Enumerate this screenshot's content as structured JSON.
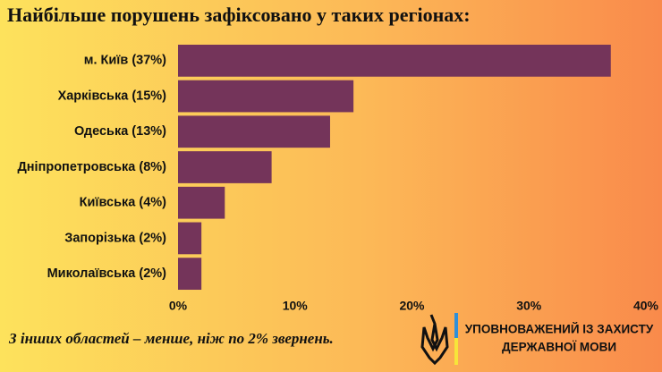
{
  "chart_data": {
    "type": "bar",
    "orientation": "horizontal",
    "title": "Найбільше порушень зафіксовано у таких регіонах:",
    "categories": [
      "м. Київ (37%)",
      "Харківська (15%)",
      "Одеська (13%)",
      "Дніпропетровська (8%)",
      "Київська (4%)",
      "Запорізька (2%)",
      "Миколаївська (2%)"
    ],
    "values": [
      37,
      15,
      13,
      8,
      4,
      2,
      2
    ],
    "color": "#74345a",
    "xlim": [
      0,
      40
    ],
    "xticks": [
      {
        "value": 0,
        "label": "0%"
      },
      {
        "value": 10,
        "label": "10%"
      },
      {
        "value": 20,
        "label": "20%"
      },
      {
        "value": 30,
        "label": "30%"
      },
      {
        "value": 40,
        "label": "40%"
      }
    ],
    "grid": false,
    "annotation": "З інших областей – менше, ніж по 2% звернень."
  },
  "logo": {
    "lines": [
      "УПОВНОВАЖЕНИЙ ІЗ ЗАХИСТУ",
      "ДЕРЖАВНОЇ МОВИ"
    ]
  }
}
